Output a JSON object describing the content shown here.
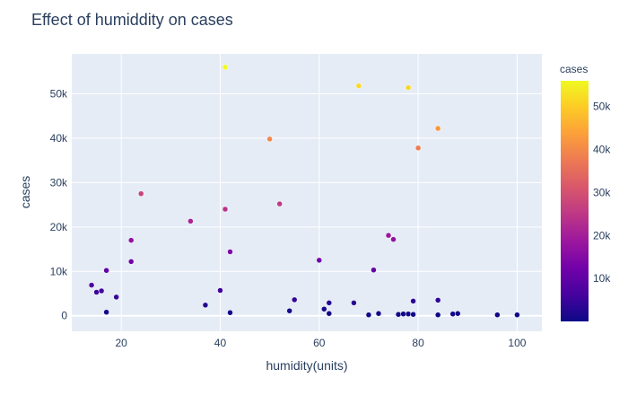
{
  "chart_data": {
    "type": "scatter",
    "title": "Effect of humiddity on cases",
    "xlabel": "humidity(units)",
    "ylabel": "cases",
    "xlim": [
      10,
      105
    ],
    "ylim": [
      -3500,
      59000
    ],
    "x_ticks": [
      20,
      40,
      60,
      80,
      100
    ],
    "y_ticks": [
      0,
      10000,
      20000,
      30000,
      40000,
      50000
    ],
    "y_tick_labels": [
      "0",
      "10k",
      "20k",
      "30k",
      "40k",
      "50k"
    ],
    "grid": true,
    "colorbar": {
      "title": "cases",
      "min": 0,
      "max": 56000,
      "ticks": [
        10000,
        20000,
        30000,
        40000,
        50000
      ],
      "tick_labels": [
        "10k",
        "20k",
        "30k",
        "40k",
        "50k"
      ],
      "colorscale": "plasma"
    },
    "x": [
      14,
      15,
      16,
      17,
      17,
      19,
      22,
      22,
      24,
      34,
      37,
      40,
      41,
      41,
      42,
      42,
      50,
      52,
      54,
      55,
      60,
      61,
      62,
      62,
      67,
      68,
      70,
      71,
      72,
      74,
      75,
      76,
      77,
      78,
      78,
      79,
      79,
      80,
      84,
      84,
      84,
      87,
      88,
      96,
      100
    ],
    "y": [
      6900,
      5300,
      5600,
      10200,
      800,
      4200,
      17000,
      12200,
      27500,
      21300,
      2400,
      5700,
      56000,
      24000,
      14400,
      700,
      39800,
      25200,
      1100,
      3600,
      12500,
      1500,
      2900,
      500,
      2900,
      51800,
      200,
      10300,
      500,
      18100,
      17200,
      300,
      400,
      51400,
      400,
      3300,
      300,
      37800,
      42200,
      3500,
      200,
      400,
      500,
      200,
      200
    ]
  }
}
